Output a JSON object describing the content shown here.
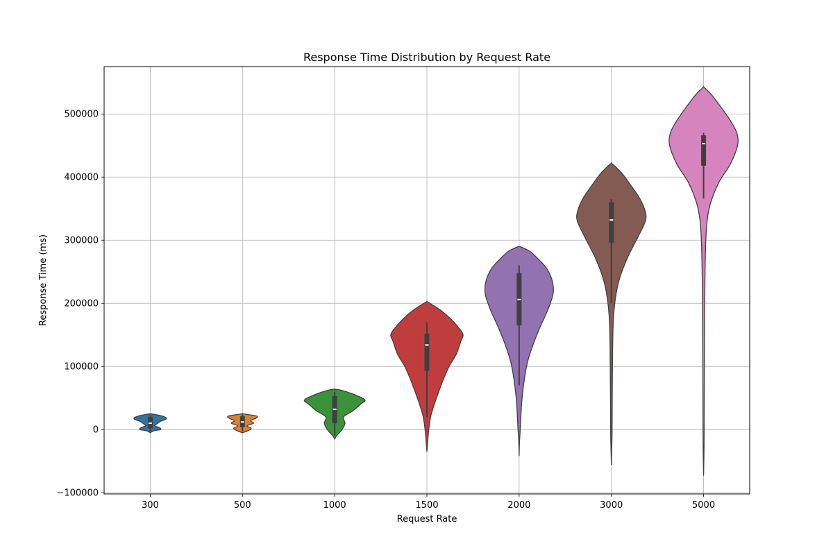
{
  "chart_data": {
    "type": "violin",
    "title": "Response Time Distribution by Request Rate",
    "xlabel": "Request Rate",
    "ylabel": "Response Time (ms)",
    "categories": [
      "300",
      "500",
      "1000",
      "1500",
      "2000",
      "3000",
      "5000"
    ],
    "y_ticks": [
      -100000,
      0,
      100000,
      200000,
      300000,
      400000,
      500000
    ],
    "y_tick_labels": [
      "−100000",
      "0",
      "100000",
      "200000",
      "300000",
      "400000",
      "500000"
    ],
    "ylim": [
      -102000,
      575000
    ],
    "grid": true,
    "series": [
      {
        "category": "300",
        "color": "#3274a1",
        "min": -5000,
        "max": 25000,
        "q1": 2000,
        "median": 10000,
        "q3": 20000,
        "whisker_low": -3000,
        "whisker_high": 23000,
        "profile": [
          [
            -5000,
            0.0
          ],
          [
            -2000,
            0.1
          ],
          [
            0,
            0.28
          ],
          [
            3000,
            0.25
          ],
          [
            6000,
            0.12
          ],
          [
            9000,
            0.18
          ],
          [
            13000,
            0.28
          ],
          [
            17000,
            0.44
          ],
          [
            21000,
            0.35
          ],
          [
            24000,
            0.12
          ],
          [
            25000,
            0.0
          ]
        ]
      },
      {
        "category": "500",
        "color": "#e1812c",
        "min": -5000,
        "max": 25000,
        "q1": 4000,
        "median": 12000,
        "q3": 21000,
        "whisker_low": -3000,
        "whisker_high": 24000,
        "profile": [
          [
            -5000,
            0.0
          ],
          [
            -2000,
            0.14
          ],
          [
            2000,
            0.24
          ],
          [
            6000,
            0.12
          ],
          [
            10000,
            0.3
          ],
          [
            14000,
            0.22
          ],
          [
            18000,
            0.36
          ],
          [
            21000,
            0.4
          ],
          [
            23000,
            0.24
          ],
          [
            25000,
            0.0
          ]
        ]
      },
      {
        "category": "1000",
        "color": "#3a923a",
        "min": -15000,
        "max": 64000,
        "q1": 10000,
        "median": 32000,
        "q3": 53000,
        "whisker_low": -10000,
        "whisker_high": 60000,
        "profile": [
          [
            -15000,
            0.0
          ],
          [
            -10000,
            0.05
          ],
          [
            0,
            0.2
          ],
          [
            10000,
            0.28
          ],
          [
            20000,
            0.24
          ],
          [
            30000,
            0.5
          ],
          [
            40000,
            0.7
          ],
          [
            47000,
            0.82
          ],
          [
            55000,
            0.55
          ],
          [
            62000,
            0.2
          ],
          [
            64000,
            0.0
          ]
        ]
      },
      {
        "category": "1500",
        "color": "#c03d3e",
        "min": -35000,
        "max": 203000,
        "q1": 93000,
        "median": 134000,
        "q3": 152000,
        "whisker_low": 20000,
        "whisker_high": 170000,
        "profile": [
          [
            -35000,
            0.0
          ],
          [
            -20000,
            0.02
          ],
          [
            0,
            0.05
          ],
          [
            20000,
            0.1
          ],
          [
            40000,
            0.2
          ],
          [
            60000,
            0.32
          ],
          [
            80000,
            0.45
          ],
          [
            100000,
            0.6
          ],
          [
            120000,
            0.8
          ],
          [
            140000,
            0.92
          ],
          [
            150000,
            0.98
          ],
          [
            160000,
            0.88
          ],
          [
            175000,
            0.65
          ],
          [
            190000,
            0.35
          ],
          [
            200000,
            0.08
          ],
          [
            203000,
            0.0
          ]
        ]
      },
      {
        "category": "2000",
        "color": "#9372b2",
        "min": -42000,
        "max": 290000,
        "q1": 165000,
        "median": 206000,
        "q3": 248000,
        "whisker_low": 70000,
        "whisker_high": 260000,
        "profile": [
          [
            -42000,
            0.0
          ],
          [
            -20000,
            0.01
          ],
          [
            0,
            0.03
          ],
          [
            50000,
            0.08
          ],
          [
            100000,
            0.2
          ],
          [
            130000,
            0.35
          ],
          [
            160000,
            0.55
          ],
          [
            190000,
            0.78
          ],
          [
            215000,
            0.92
          ],
          [
            235000,
            0.9
          ],
          [
            255000,
            0.75
          ],
          [
            270000,
            0.52
          ],
          [
            282000,
            0.3
          ],
          [
            289000,
            0.06
          ],
          [
            290000,
            0.0
          ]
        ]
      },
      {
        "category": "3000",
        "color": "#845b53",
        "min": -56000,
        "max": 422000,
        "q1": 296000,
        "median": 332000,
        "q3": 360000,
        "whisker_low": 200000,
        "whisker_high": 365000,
        "profile": [
          [
            -56000,
            0.0
          ],
          [
            -30000,
            0.01
          ],
          [
            0,
            0.02
          ],
          [
            100000,
            0.03
          ],
          [
            180000,
            0.06
          ],
          [
            230000,
            0.18
          ],
          [
            270000,
            0.42
          ],
          [
            305000,
            0.72
          ],
          [
            330000,
            0.92
          ],
          [
            345000,
            0.92
          ],
          [
            365000,
            0.78
          ],
          [
            385000,
            0.55
          ],
          [
            405000,
            0.3
          ],
          [
            418000,
            0.08
          ],
          [
            422000,
            0.0
          ]
        ]
      },
      {
        "category": "5000",
        "color": "#d684bd",
        "min": -73000,
        "max": 543000,
        "q1": 418000,
        "median": 453000,
        "q3": 466000,
        "whisker_low": 366000,
        "whisker_high": 470000,
        "profile": [
          [
            -73000,
            0.0
          ],
          [
            -40000,
            0.01
          ],
          [
            0,
            0.015
          ],
          [
            100000,
            0.02
          ],
          [
            200000,
            0.03
          ],
          [
            300000,
            0.06
          ],
          [
            350000,
            0.15
          ],
          [
            390000,
            0.4
          ],
          [
            420000,
            0.72
          ],
          [
            450000,
            0.92
          ],
          [
            470000,
            0.9
          ],
          [
            490000,
            0.72
          ],
          [
            510000,
            0.48
          ],
          [
            530000,
            0.22
          ],
          [
            540000,
            0.05
          ],
          [
            543000,
            0.0
          ]
        ]
      }
    ]
  }
}
